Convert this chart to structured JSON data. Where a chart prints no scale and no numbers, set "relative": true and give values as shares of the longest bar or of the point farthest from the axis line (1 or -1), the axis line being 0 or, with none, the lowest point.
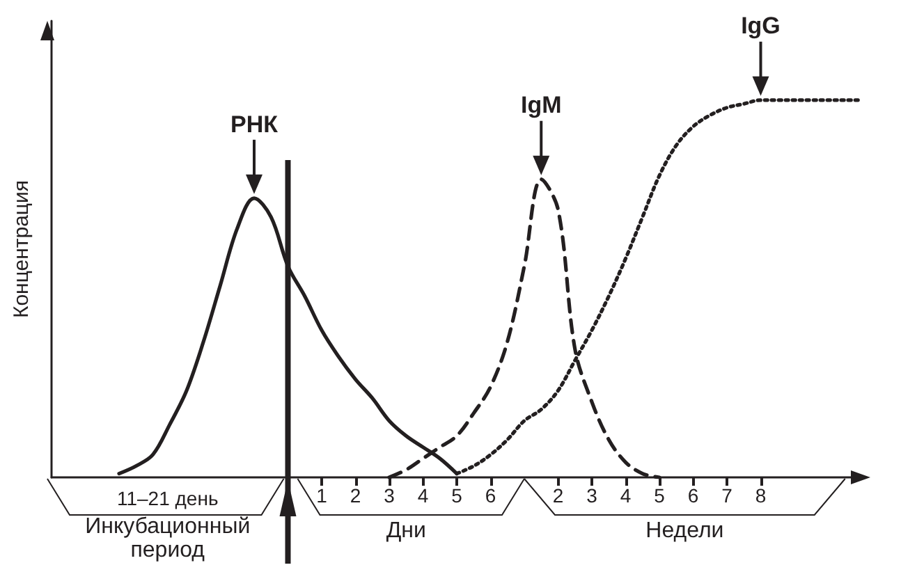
{
  "chart_data": {
    "type": "line",
    "relative": true,
    "ylabel": "Концентрация",
    "categories": [
      null,
      null,
      null,
      null,
      null,
      null,
      null,
      null,
      null,
      null,
      null,
      null,
      null,
      null,
      null,
      null,
      "1",
      null,
      "2",
      null,
      "3",
      null,
      "4",
      null,
      "5",
      null,
      "6",
      null,
      null,
      null,
      "2",
      null,
      "3",
      null,
      "4",
      null,
      "5",
      null,
      "6",
      null,
      "7",
      null,
      "8",
      null,
      null,
      null,
      null,
      null,
      null
    ],
    "series": [
      {
        "name": "РНК",
        "color": "#231f20",
        "line_style": "solid",
        "values": [
          null,
          null,
          null,
          null,
          0.01,
          0.03,
          0.06,
          0.14,
          0.23,
          0.36,
          0.51,
          0.66,
          0.74,
          0.69,
          0.56,
          0.48,
          0.39,
          0.32,
          0.26,
          0.21,
          0.15,
          0.11,
          0.08,
          0.05,
          0.01,
          null,
          null,
          null,
          null,
          null,
          null,
          null,
          null,
          null,
          null,
          null,
          null,
          null,
          null,
          null,
          null,
          null,
          null,
          null,
          null,
          null,
          null,
          null,
          null
        ]
      },
      {
        "name": "IgM",
        "color": "#231f20",
        "line_style": "dashed",
        "values": [
          null,
          null,
          null,
          null,
          null,
          null,
          null,
          null,
          null,
          null,
          null,
          null,
          null,
          null,
          null,
          null,
          null,
          null,
          null,
          null,
          0,
          0.02,
          0.05,
          0.08,
          0.11,
          0.17,
          0.24,
          0.36,
          0.56,
          0.79,
          0.71,
          0.34,
          0.2,
          0.1,
          0.04,
          0.01,
          0,
          null,
          null,
          null,
          null,
          null,
          null,
          null,
          null,
          null,
          null,
          null,
          null
        ]
      },
      {
        "name": "IgG",
        "color": "#231f20",
        "line_style": "dotted",
        "values": [
          null,
          null,
          null,
          null,
          null,
          null,
          null,
          null,
          null,
          null,
          null,
          null,
          null,
          null,
          null,
          null,
          null,
          null,
          null,
          null,
          null,
          null,
          null,
          null,
          0.01,
          0.03,
          0.06,
          0.1,
          0.15,
          0.18,
          0.23,
          0.31,
          0.39,
          0.48,
          0.58,
          0.69,
          0.8,
          0.88,
          0.93,
          0.96,
          0.98,
          0.99,
          1,
          1,
          1,
          1,
          1,
          1,
          1
        ]
      }
    ],
    "annotations": [
      "11–21 день",
      "Инкубационный период",
      "Дни",
      "Недели"
    ]
  }
}
